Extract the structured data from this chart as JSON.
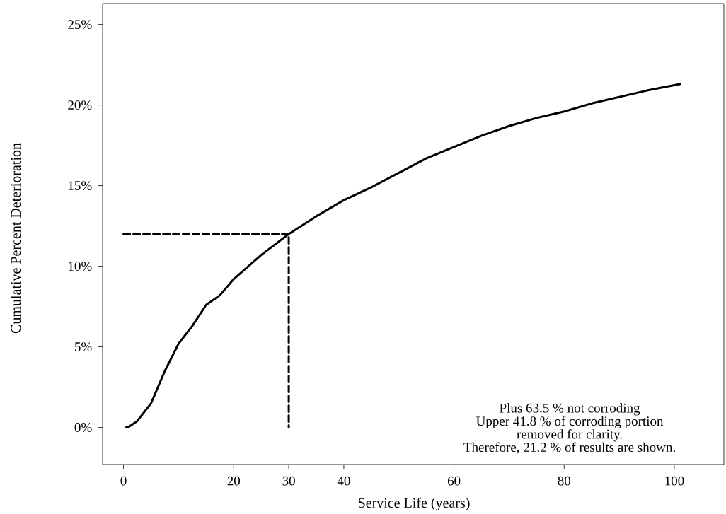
{
  "chart_data": {
    "type": "line",
    "xlabel": "Service Life (years)",
    "ylabel": "Cumulative Percent Deterioration",
    "xlim": [
      -3.8,
      109
    ],
    "ylim": [
      -2.3,
      26.3
    ],
    "xticks": [
      0,
      20,
      30,
      40,
      60,
      80,
      100
    ],
    "yticks": [
      {
        "value": 0,
        "label": "0%"
      },
      {
        "value": 5,
        "label": "5%"
      },
      {
        "value": 10,
        "label": "10%"
      },
      {
        "value": 15,
        "label": "15%"
      },
      {
        "value": 20,
        "label": "20%"
      },
      {
        "value": 25,
        "label": "25%"
      }
    ],
    "grid": false,
    "marker": "none",
    "series": [
      {
        "color": "#000000",
        "line_style": "solid",
        "x": [
          0.5,
          1,
          2.5,
          5,
          7.5,
          10,
          12.5,
          15,
          17.5,
          20,
          25,
          30,
          35,
          40,
          45,
          50,
          55,
          60,
          65,
          70,
          75,
          80,
          85,
          90,
          95,
          101
        ],
        "values": [
          0,
          0.05,
          0.4,
          1.5,
          3.5,
          5.2,
          6.3,
          7.6,
          8.2,
          9.2,
          10.7,
          12.0,
          13.1,
          14.1,
          14.9,
          15.8,
          16.7,
          17.4,
          18.1,
          18.7,
          19.2,
          19.6,
          20.1,
          20.5,
          20.9,
          21.3
        ]
      },
      {
        "color": "#000000",
        "line_style": "dashed",
        "x": [
          0,
          30,
          30
        ],
        "values": [
          12,
          12,
          0
        ]
      }
    ],
    "annotations": [
      "Plus  63.5 % not corroding",
      "Upper 41.8 % of corroding portion",
      "removed for clarity.",
      "Therefore,  21.2 % of results are shown."
    ]
  }
}
